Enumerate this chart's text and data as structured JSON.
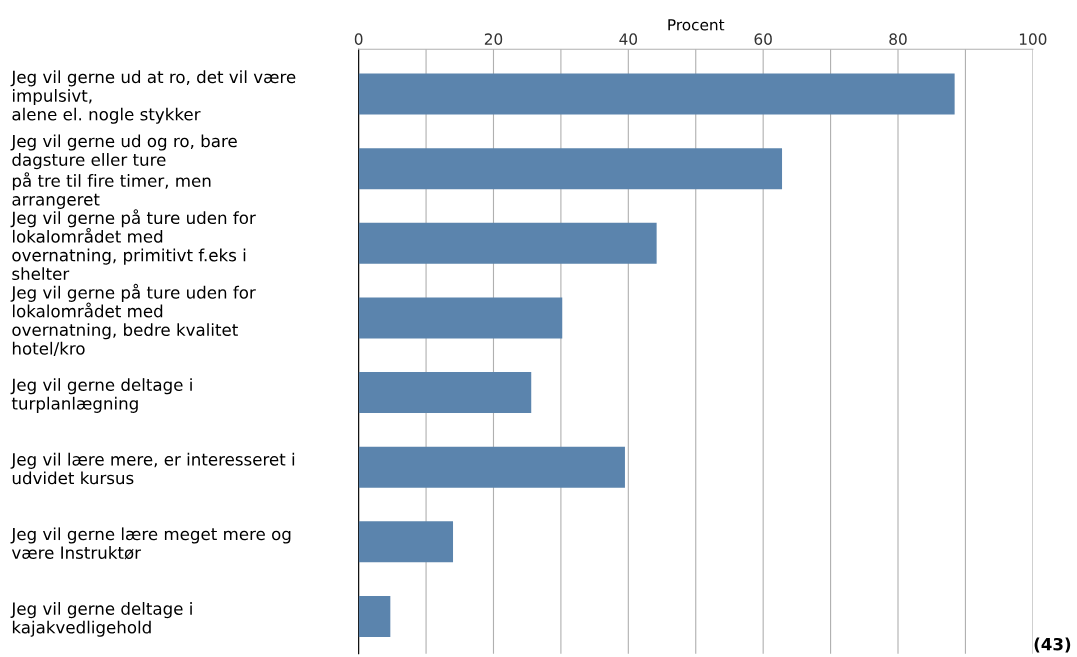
{
  "chart_data": {
    "type": "bar",
    "orientation": "horizontal",
    "categories": [
      "Jeg vil gerne ud at ro, det vil være\nimpulsivt,\nalene el. nogle stykker",
      "Jeg vil gerne ud og ro, bare\ndagsture eller ture\npå tre til fire timer, men\narrangeret",
      "Jeg vil gerne på ture uden for\nlokalområdet med\novernatning, primitivt f.eks i\nshelter",
      "Jeg vil gerne på ture uden for\nlokalområdet med\novernatning, bedre kvalitet\nhotel/kro",
      "Jeg vil gerne deltage i\nturplanlægning",
      "Jeg vil lære mere, er interesseret i\nudvidet kursus",
      "Jeg vil gerne lære meget mere og\nvære Instruktør",
      "Jeg vil gerne deltage i\nkajakvedligehold"
    ],
    "values": [
      88.4,
      62.8,
      44.2,
      30.2,
      25.6,
      39.5,
      14.0,
      4.7
    ],
    "color": "#5b84ad",
    "xlabel": "Procent",
    "xlim": [
      0,
      100
    ],
    "xticks": [
      0,
      {
        "value": 10,
        "label": null
      },
      20,
      {
        "value": 30,
        "label": null
      },
      40,
      {
        "value": 50,
        "label": null
      },
      60,
      {
        "value": 70,
        "label": null
      },
      80,
      {
        "value": 90,
        "label": null
      },
      100
    ],
    "grid": "x",
    "annotations": [
      "(43)"
    ]
  }
}
